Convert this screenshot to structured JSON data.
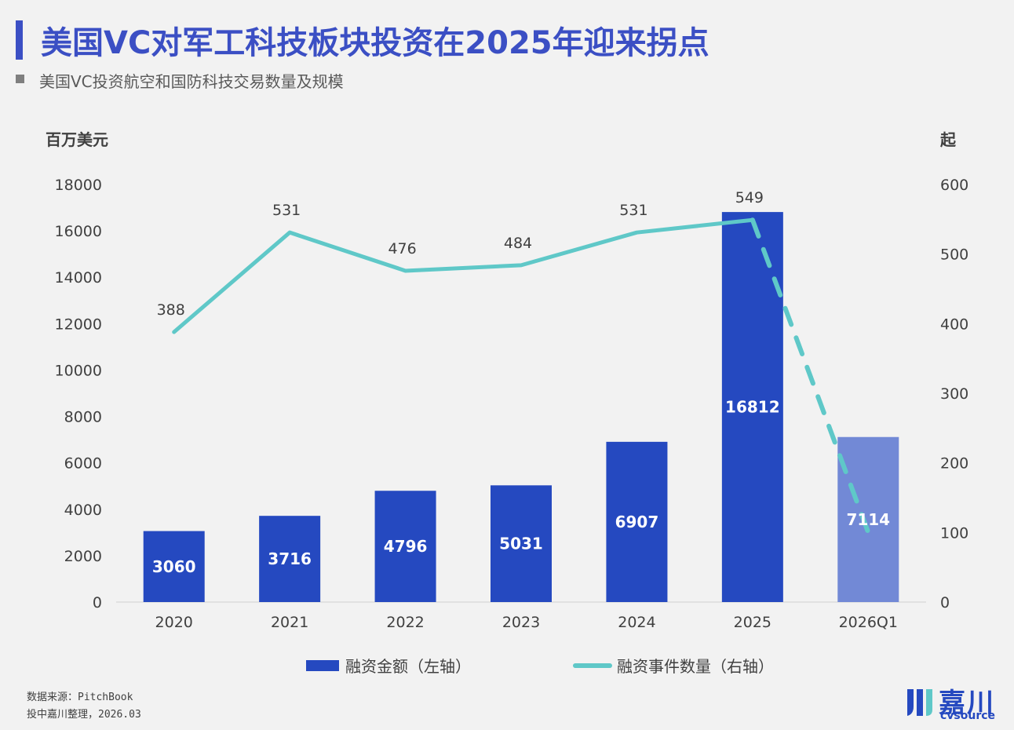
{
  "header": {
    "title": "美国VC对军工科技板块投资在2025年迎来拐点",
    "subtitle": "美国VC投资航空和国防科技交易数量及规模"
  },
  "axes": {
    "left_unit": "百万美元",
    "right_unit": "起"
  },
  "legend": {
    "bar_label": "融资金额（左轴）",
    "line_label": "融资事件数量（右轴）"
  },
  "footer": {
    "source": "数据来源：PitchBook",
    "compiled": "投中嘉川整理，2026.03"
  },
  "logo": {
    "cn": "嘉川",
    "en": "cvsource"
  },
  "colors": {
    "title": "#3b4fc4",
    "bar": "#2549c0",
    "bar_forecast": "#7289d6",
    "line": "#5fc8c8"
  },
  "chart_data": {
    "type": "bar",
    "categories": [
      "2020",
      "2021",
      "2022",
      "2023",
      "2024",
      "2025",
      "2026Q1"
    ],
    "series": [
      {
        "name": "融资金额（左轴）",
        "type": "bar",
        "axis": "left",
        "values": [
          3060,
          3716,
          4796,
          5031,
          6907,
          16812,
          7114
        ],
        "labels": [
          "3060",
          "3716",
          "4796",
          "5031",
          "6907",
          "16812",
          "7114"
        ]
      },
      {
        "name": "融资事件数量（右轴）",
        "type": "line",
        "axis": "right",
        "values": [
          388,
          531,
          476,
          484,
          531,
          549,
          100
        ],
        "labels": [
          "388",
          "531",
          "476",
          "484",
          "531",
          "549",
          ""
        ],
        "dashed_last_segment": true
      }
    ],
    "y_left": {
      "min": 0,
      "max": 18000,
      "ticks": [
        "0",
        "2000",
        "4000",
        "6000",
        "8000",
        "10000",
        "12000",
        "14000",
        "16000",
        "18000"
      ]
    },
    "y_right": {
      "min": 0,
      "max": 600,
      "ticks": [
        "0",
        "100",
        "200",
        "300",
        "400",
        "500",
        "600"
      ]
    },
    "title": "美国VC投资航空和国防科技交易数量及规模",
    "ylabel_left": "百万美元",
    "ylabel_right": "起"
  }
}
